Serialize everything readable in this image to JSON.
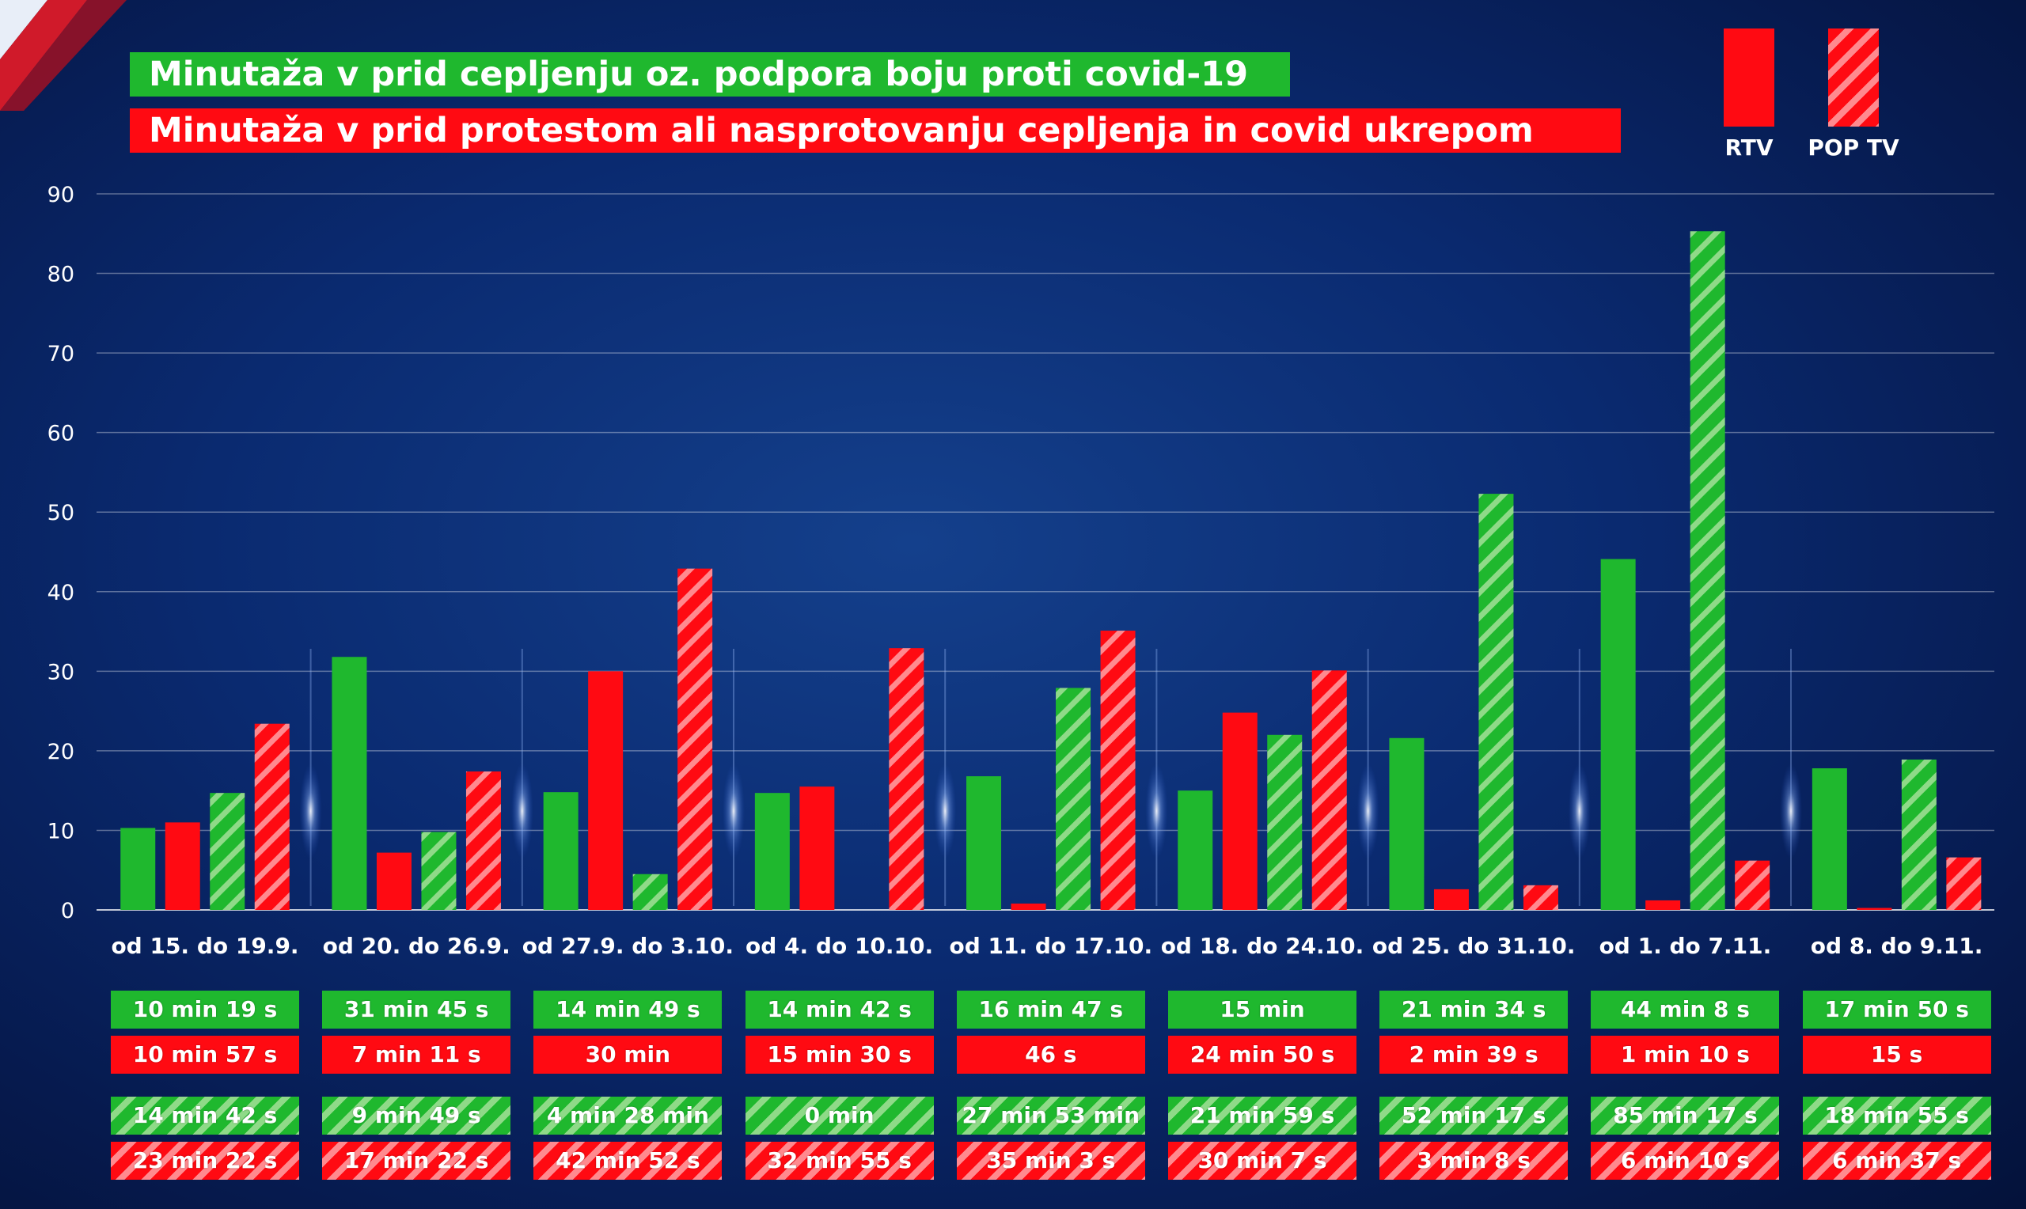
{
  "legend": {
    "title_green": "Minutaža v prid cepljenju oz. podpora boju proti covid-19",
    "title_red": "Minutaža v prid protestom ali nasprotovanju cepljenja in covid ukrepom",
    "rtv": "RTV",
    "pop_tv": "POP TV"
  },
  "colors": {
    "green": "#1fb82e",
    "red": "#ff0a12",
    "hatch_green": "#8fda88",
    "hatch_red": "#ff8a8f",
    "background": "#0a2a70"
  },
  "chart_data": {
    "type": "bar",
    "title": "",
    "xlabel": "",
    "ylabel": "",
    "ylim": [
      0,
      90
    ],
    "yticks": [
      0,
      10,
      20,
      30,
      40,
      50,
      60,
      70,
      80,
      90
    ],
    "grid": true,
    "legend_position": "top-right",
    "categories": [
      "od 15. do 19.9.",
      "od 20. do 26.9.",
      "od 27.9. do 3.10.",
      "od 4. do 10.10.",
      "od 11. do 17.10.",
      "od 18. do 24.10.",
      "od 25. do 31.10.",
      "od 1. do 7.11.",
      "od 8. do 9.11."
    ],
    "series": [
      {
        "style": "solid-green",
        "values": [
          10.3,
          31.8,
          14.8,
          14.7,
          16.8,
          15.0,
          21.6,
          44.1,
          17.8
        ],
        "labels": [
          "10 min 19 s",
          "31 min 45 s",
          "14 min 49 s",
          "14 min 42 s",
          "16 min 47 s",
          "15 min",
          "21 min 34 s",
          "44 min 8 s",
          "17 min 50 s"
        ]
      },
      {
        "style": "solid-red",
        "values": [
          11.0,
          7.2,
          30.0,
          15.5,
          0.8,
          24.8,
          2.6,
          1.2,
          0.25
        ],
        "labels": [
          "10 min 57 s",
          "7 min 11 s",
          "30 min",
          "15 min 30 s",
          "46 s",
          "24 min 50 s",
          "2 min 39 s",
          "1 min 10 s",
          "15 s"
        ]
      },
      {
        "style": "hatch-green",
        "values": [
          14.7,
          9.8,
          4.5,
          0,
          27.9,
          22.0,
          52.3,
          85.3,
          18.9
        ],
        "labels": [
          "14 min 42 s",
          "9 min 49 s",
          "4 min 28 min",
          "0 min",
          "27 min 53 min",
          "21 min 59 s",
          "52 min 17 s",
          "85 min 17 s",
          "18 min 55 s"
        ]
      },
      {
        "style": "hatch-red",
        "values": [
          23.4,
          17.4,
          42.9,
          32.9,
          35.1,
          30.1,
          3.1,
          6.2,
          6.6
        ],
        "labels": [
          "23 min 22 s",
          "17 min 22 s",
          "42 min 52 s",
          "32 min 55 s",
          "35 min 3 s",
          "30 min 7 s",
          "3 min 8 s",
          "6 min 10 s",
          "6 min 37 s"
        ]
      }
    ]
  }
}
